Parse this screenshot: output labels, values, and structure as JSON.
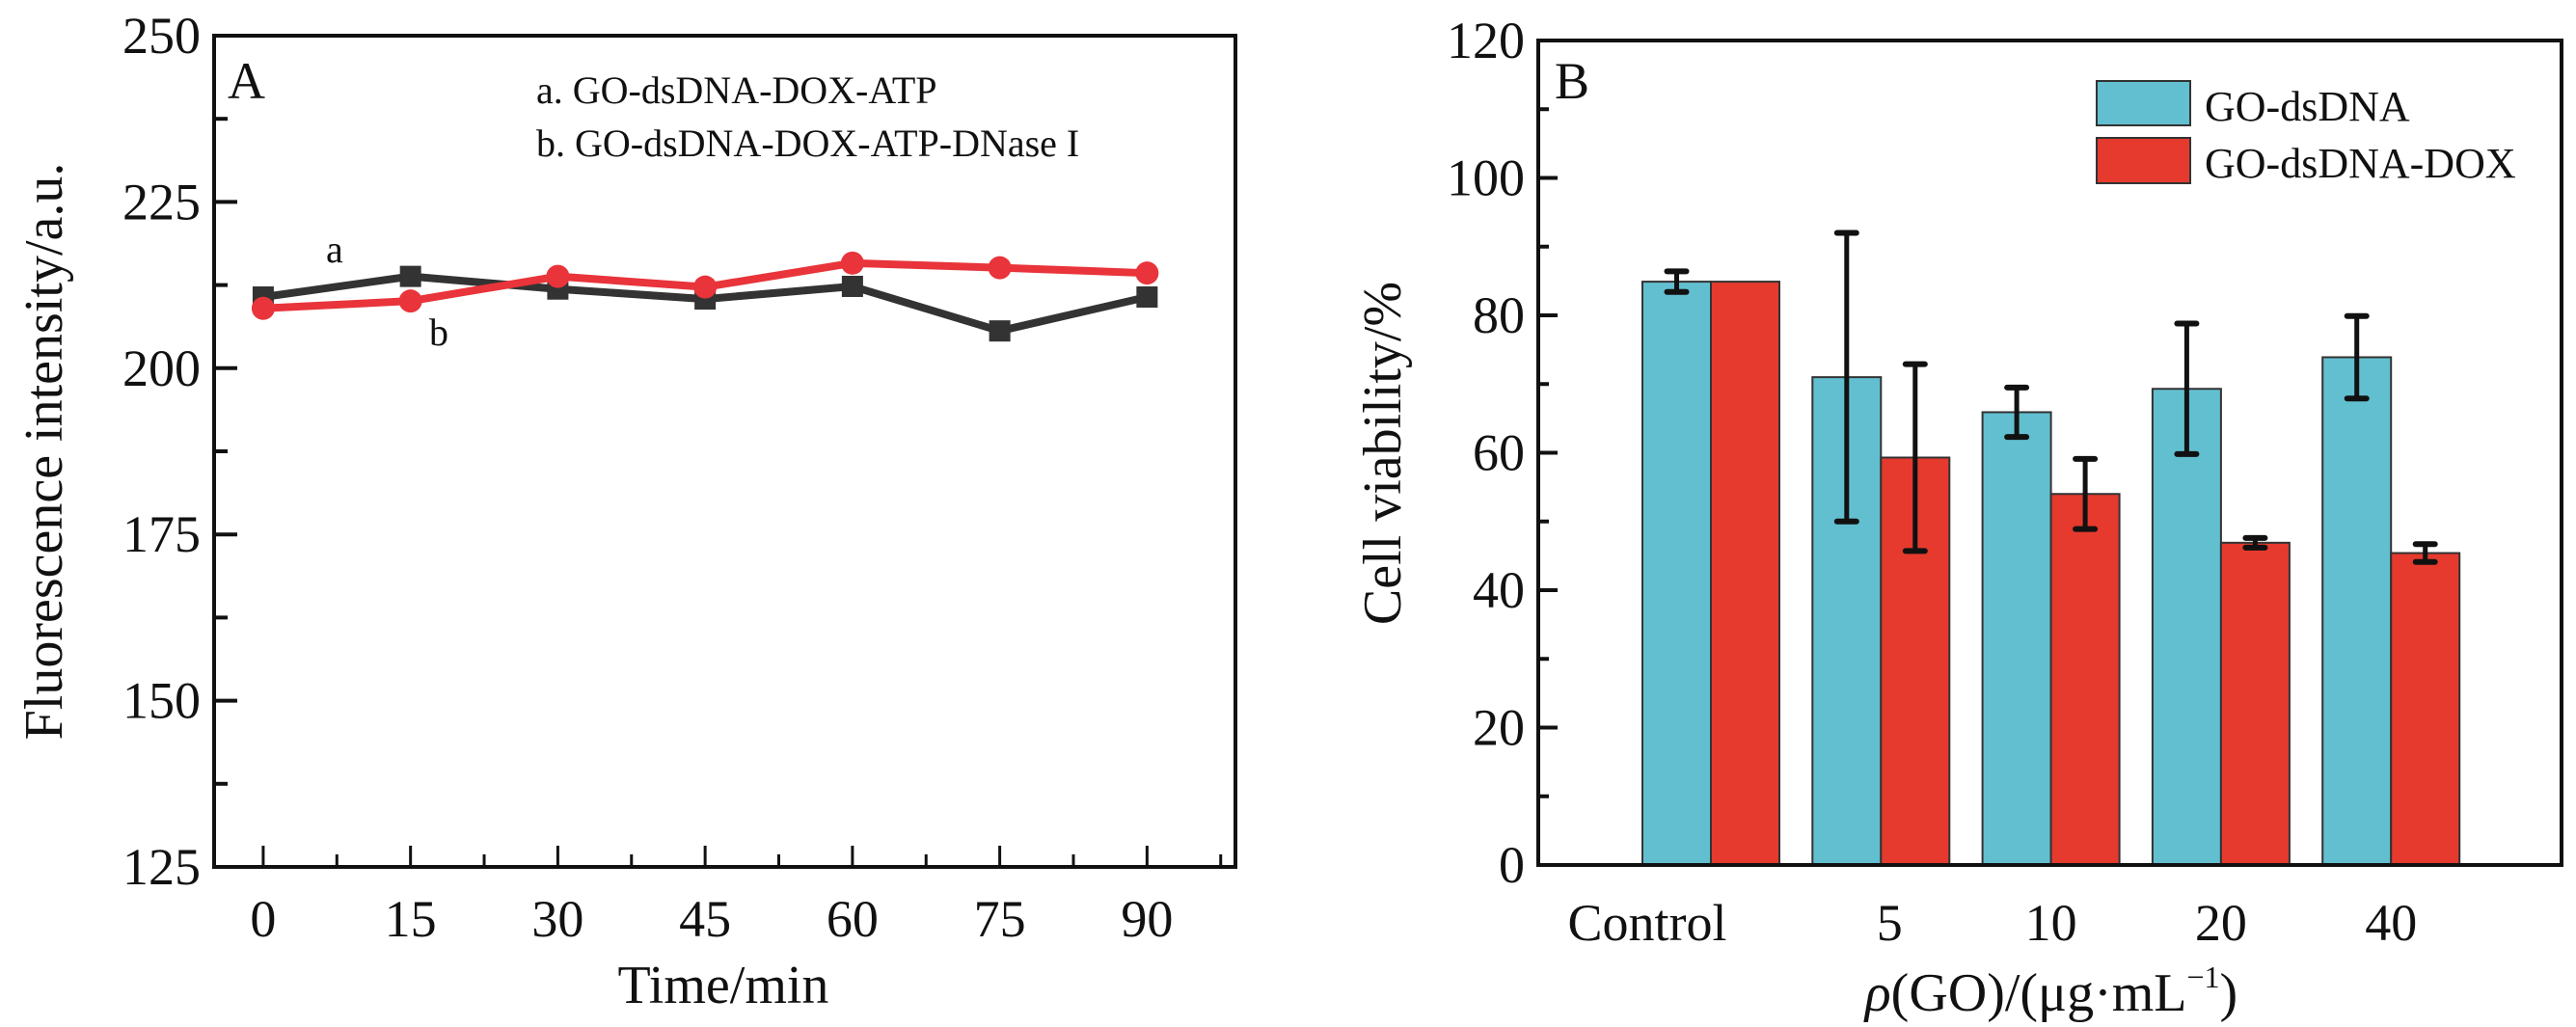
{
  "chart_data": [
    {
      "panel": "A",
      "type": "line",
      "title": "",
      "xlabel": "Time/min",
      "ylabel": "Fluorescence intensity/a.u.",
      "xlim": [
        -5,
        99
      ],
      "ylim": [
        125,
        250
      ],
      "x_ticks": [
        0,
        15,
        30,
        45,
        60,
        75,
        90
      ],
      "x_tick_labels": [
        "0",
        "15",
        "30",
        "45",
        "60",
        "75",
        "90"
      ],
      "y_ticks": [
        125,
        150,
        175,
        200,
        225,
        250
      ],
      "y_tick_labels": [
        "125",
        "150",
        "175",
        "200",
        "225",
        "250"
      ],
      "grid": false,
      "legend_position": "top-right",
      "x": [
        0,
        15,
        30,
        45,
        60,
        75,
        90
      ],
      "series": [
        {
          "name": "a. GO-dsDNA-DOX-ATP",
          "short_label": "a",
          "color": "#333333",
          "marker": "square",
          "values": [
            210.7,
            213.8,
            211.9,
            210.4,
            212.3,
            205.6,
            210.7
          ]
        },
        {
          "name": "b. GO-dsDNA-DOX-ATP-DNase I",
          "short_label": "b",
          "color": "#e8343a",
          "marker": "circle",
          "values": [
            209.0,
            210.1,
            213.8,
            212.2,
            215.8,
            215.1,
            214.3
          ]
        }
      ]
    },
    {
      "panel": "B",
      "type": "bar",
      "title": "",
      "xlabel_prefix": "ρ",
      "xlabel_main": "(GO)/(μg·mL",
      "xlabel_sup": "−1",
      "xlabel_suffix": ")",
      "ylabel": "Cell viability/%",
      "ylim": [
        0,
        120
      ],
      "y_ticks": [
        0,
        20,
        40,
        60,
        80,
        100,
        120
      ],
      "y_tick_labels": [
        "0",
        "20",
        "40",
        "60",
        "80",
        "100",
        "120"
      ],
      "grid": false,
      "legend_position": "top-right",
      "categories": [
        "Control",
        "5",
        "10",
        "20",
        "40"
      ],
      "series": [
        {
          "name": "GO-dsDNA",
          "color": "#62bfd0",
          "values": [
            84.9,
            71.0,
            65.9,
            69.3,
            73.9
          ],
          "error": [
            1.5,
            21.0,
            3.6,
            9.5,
            6.0
          ]
        },
        {
          "name": "GO-dsDNA-DOX",
          "color": "#e63a2e",
          "values": [
            84.9,
            59.3,
            54.0,
            46.9,
            45.4
          ],
          "error": [
            null,
            13.6,
            5.1,
            0.7,
            1.3
          ]
        }
      ]
    }
  ]
}
